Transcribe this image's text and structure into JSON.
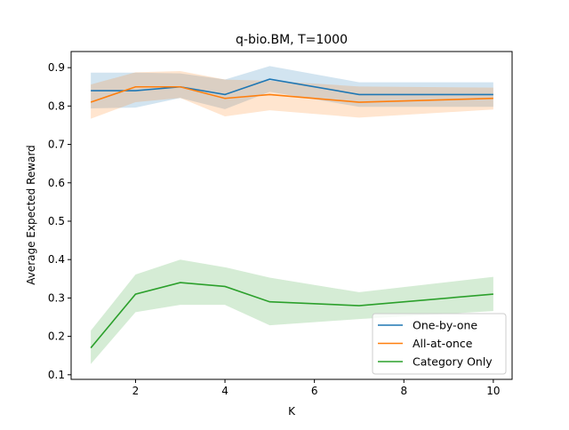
{
  "chart_data": {
    "type": "line",
    "title": "q-bio.BM, T=1000",
    "xlabel": "K",
    "ylabel": "Average Expected Reward",
    "xlim": [
      0.56,
      10.42
    ],
    "ylim": [
      0.088,
      0.942
    ],
    "xticks": [
      2,
      4,
      6,
      8,
      10
    ],
    "yticks": [
      0.1,
      0.2,
      0.3,
      0.4,
      0.5,
      0.6,
      0.7,
      0.8,
      0.9
    ],
    "grid": false,
    "legend_position": "lower right",
    "x": [
      1,
      2,
      3,
      4,
      5,
      7,
      10
    ],
    "series": [
      {
        "name": "One-by-one",
        "color": "#1f77b4",
        "values": [
          0.84,
          0.84,
          0.85,
          0.83,
          0.87,
          0.83,
          0.83
        ],
        "upper": [
          0.887,
          0.887,
          0.885,
          0.869,
          0.904,
          0.862,
          0.862
        ],
        "lower": [
          0.794,
          0.796,
          0.821,
          0.792,
          0.837,
          0.798,
          0.798
        ]
      },
      {
        "name": "All-at-once",
        "color": "#ff7f0e",
        "values": [
          0.81,
          0.85,
          0.85,
          0.82,
          0.83,
          0.81,
          0.82
        ],
        "upper": [
          0.856,
          0.888,
          0.891,
          0.869,
          0.866,
          0.851,
          0.848
        ],
        "lower": [
          0.767,
          0.81,
          0.821,
          0.773,
          0.789,
          0.77,
          0.791
        ]
      },
      {
        "name": "Category Only",
        "color": "#2ca02c",
        "values": [
          0.17,
          0.31,
          0.34,
          0.33,
          0.29,
          0.28,
          0.31
        ],
        "upper": [
          0.215,
          0.361,
          0.4,
          0.38,
          0.353,
          0.315,
          0.355
        ],
        "lower": [
          0.128,
          0.263,
          0.282,
          0.282,
          0.229,
          0.245,
          0.266
        ]
      }
    ]
  }
}
